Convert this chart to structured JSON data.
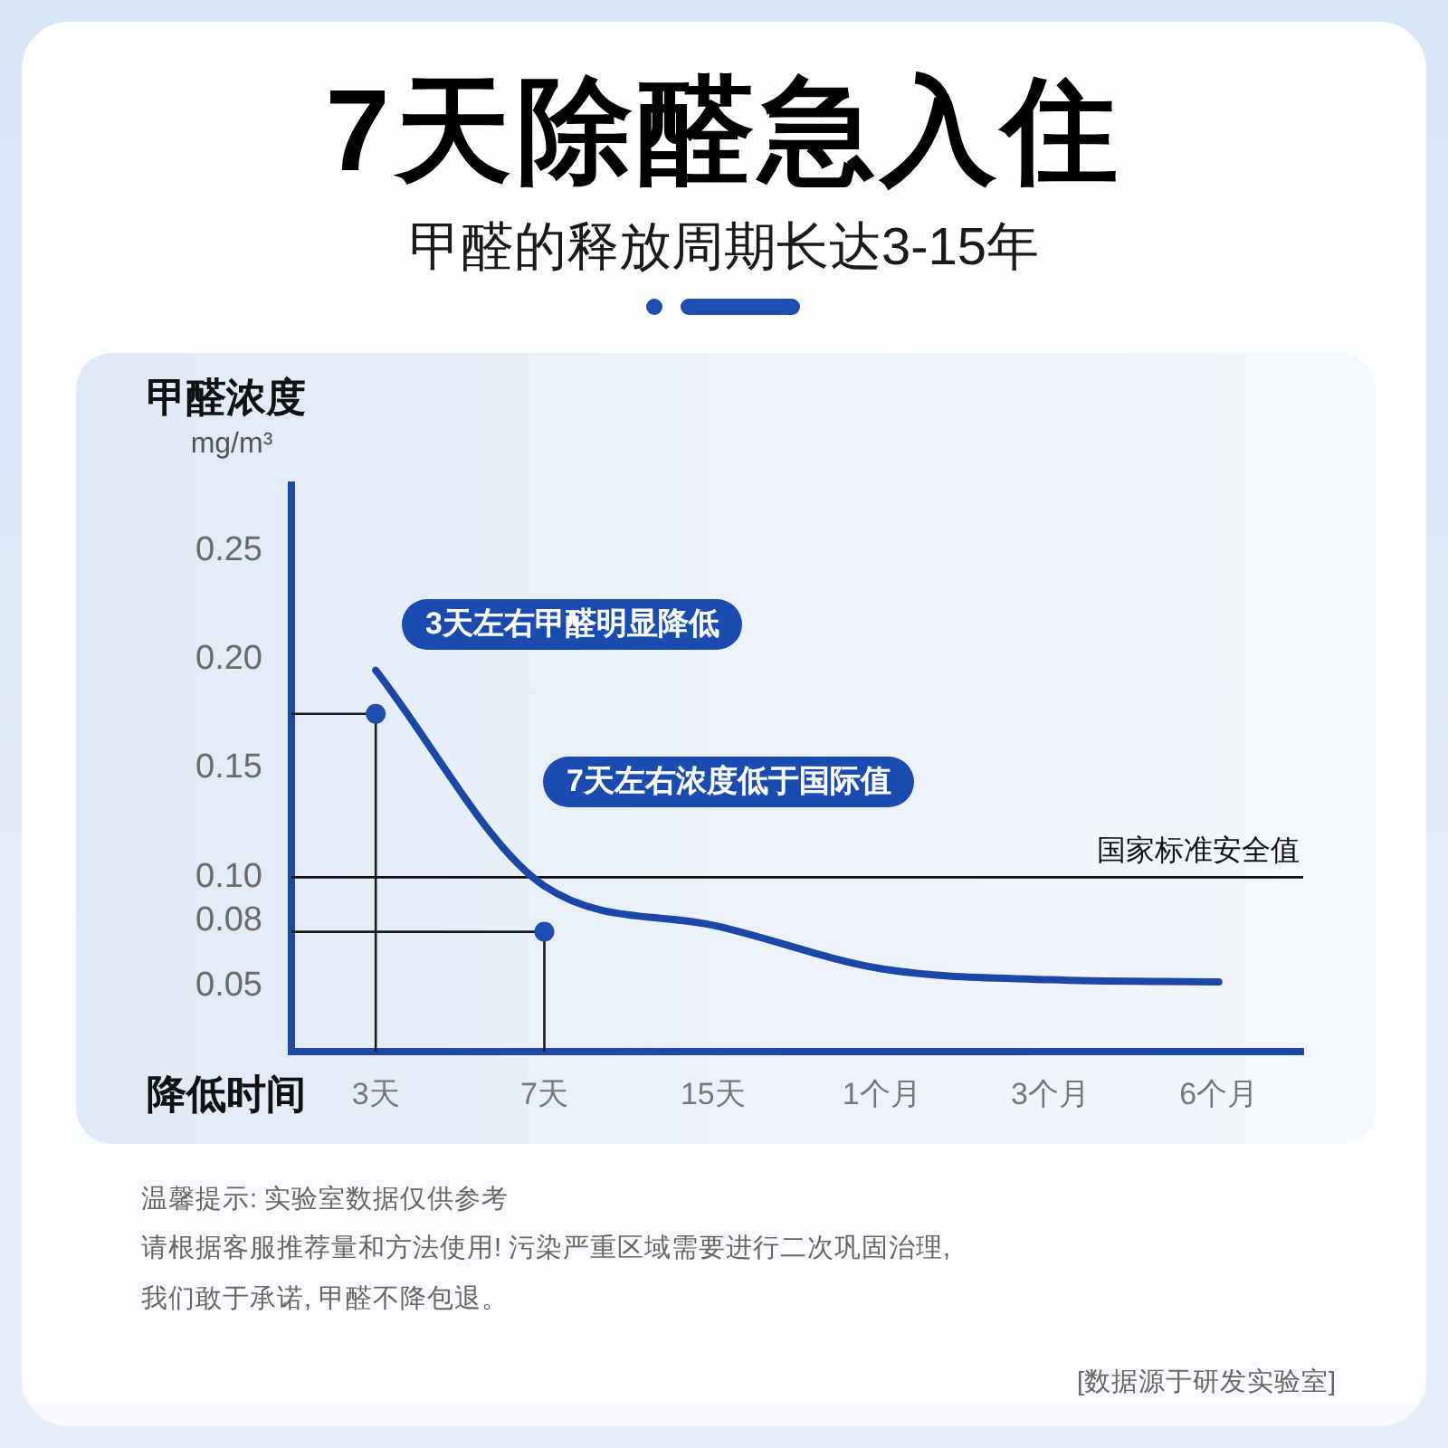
{
  "chart_data": {
    "type": "line",
    "title": "7天除醛急入住",
    "subtitle": "甲醛的释放周期长达3-15年",
    "xlabel": "降低时间",
    "ylabel": "甲醛浓度 mg/m³",
    "categories": [
      "3天",
      "7天",
      "15天",
      "1个月",
      "3个月",
      "6个月"
    ],
    "series": [
      {
        "color": "#1a47a8",
        "values": [
          0.195,
          0.096,
          0.078,
          0.058,
          0.053,
          0.052
        ],
        "marker": "none"
      },
      {
        "type": "scatter",
        "color": "#1d4fb0",
        "x": [
          "3天",
          "7天"
        ],
        "values": [
          0.175,
          0.075
        ],
        "marker": "circle"
      }
    ],
    "ylim": [
      0.02,
      0.28
    ],
    "yticks": [
      0.25,
      {
        "value": 0.2,
        "label": "0.20"
      },
      0.15,
      {
        "value": 0.1,
        "label": "0.10"
      },
      0.08,
      0.05
    ],
    "ref_lines": [
      {
        "axis": "y",
        "value": 0.1,
        "label": "国家标准安全值",
        "color": "#111111"
      }
    ],
    "annotations": [
      "3天左右甲醛明显降低",
      "7天左右浓度低于国际值",
      "温馨提示: 实验室数据仅供参考",
      "请根据客服推荐量和方法使用! 污染严重区域需要进行二次巩固治理, 我们敢于承诺, 甲醛不降包退。",
      "[数据源于研发实验室]"
    ],
    "grid": false,
    "legend": false,
    "line_style": "solid"
  }
}
